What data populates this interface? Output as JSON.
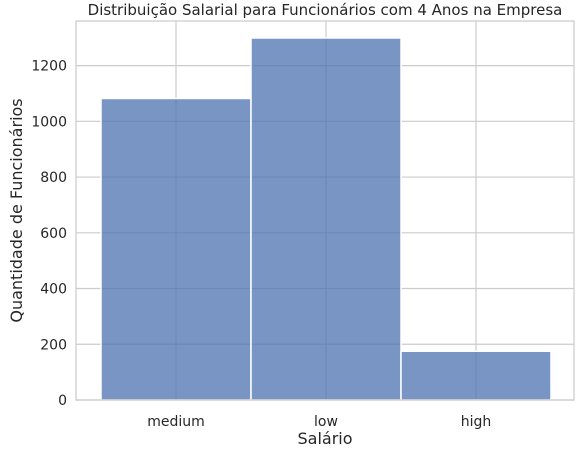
{
  "chart_data": {
    "type": "bar",
    "title": "Distribuição Salarial para Funcionários com 4 Anos na Empresa",
    "xlabel": "Salário",
    "ylabel": "Quantidade de Funcionários",
    "categories": [
      "medium",
      "low",
      "high"
    ],
    "values": [
      1082,
      1299,
      175
    ],
    "ylim": [
      0,
      1360
    ],
    "yticks": [
      0,
      200,
      400,
      600,
      800,
      1000,
      1200
    ],
    "grid": true,
    "colors": {
      "bar": "#4c72b0",
      "bar_edge": "#ffffff",
      "grid": "#cccccc",
      "frame": "#cccccc",
      "text": "#262626"
    }
  }
}
